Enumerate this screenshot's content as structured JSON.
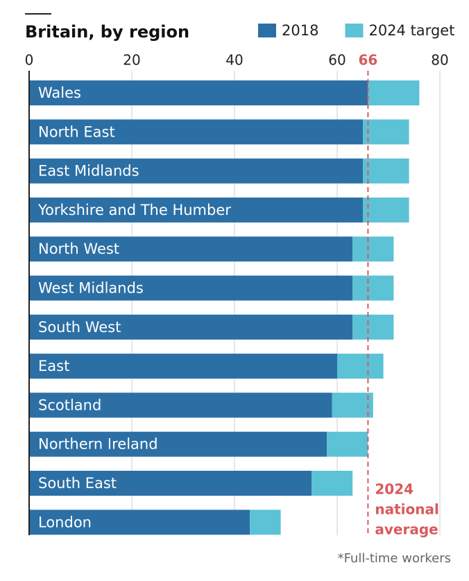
{
  "chart_data": {
    "type": "stacked-bar-horizontal",
    "title": "Britain, by region",
    "categories": [
      "Wales",
      "North East",
      "East Midlands",
      "Yorkshire and The Humber",
      "North West",
      "West Midlands",
      "South West",
      "East",
      "Scotland",
      "Northern Ireland",
      "South East",
      "London"
    ],
    "series": [
      {
        "name": "2018",
        "color": "#2c6fa5",
        "values": [
          66,
          65,
          65,
          65,
          63,
          63,
          63,
          60,
          59,
          58,
          55,
          43
        ]
      },
      {
        "name": "2024 target",
        "color": "#5cc2d5",
        "values": [
          10,
          9,
          9,
          9,
          8,
          8,
          8,
          9,
          8,
          8,
          8,
          6
        ]
      }
    ],
    "xlim": [
      0,
      80
    ],
    "xticks": [
      0,
      20,
      40,
      60,
      80
    ],
    "grid": true,
    "reference_line": {
      "value": 66,
      "color": "#d9595c",
      "label_lines": [
        "2024",
        "national",
        "average"
      ]
    },
    "note": "*Full-time workers"
  }
}
